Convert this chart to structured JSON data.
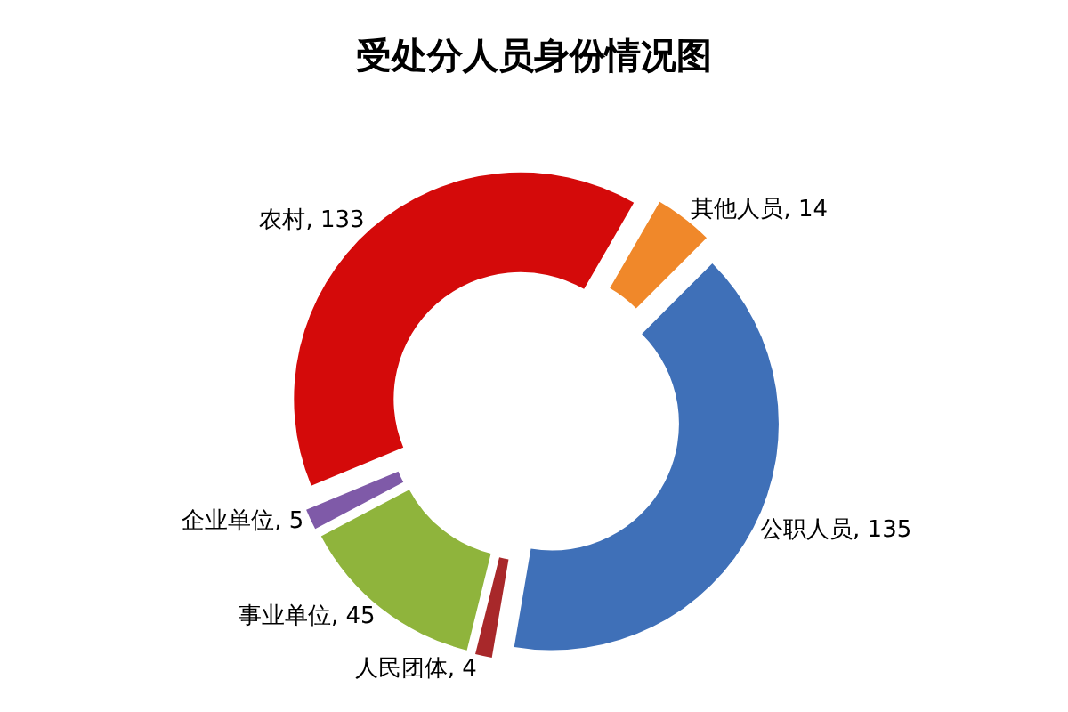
{
  "chart_data": {
    "type": "donut",
    "title": "受处分人员身份情况图",
    "categories": [
      "公职人员",
      "人民团体",
      "事业单位",
      "企业单位",
      "农村",
      "其他人员"
    ],
    "values": [
      135,
      4,
      45,
      5,
      133,
      14
    ],
    "value_labels": [
      ", 135",
      ", 4",
      ", 45",
      ", 5",
      ", 133",
      ", 14"
    ],
    "colors": [
      "#3f70b8",
      "#a8282a",
      "#8fb43c",
      "#7f5aa8",
      "#d40a0a",
      "#f0882a"
    ]
  }
}
